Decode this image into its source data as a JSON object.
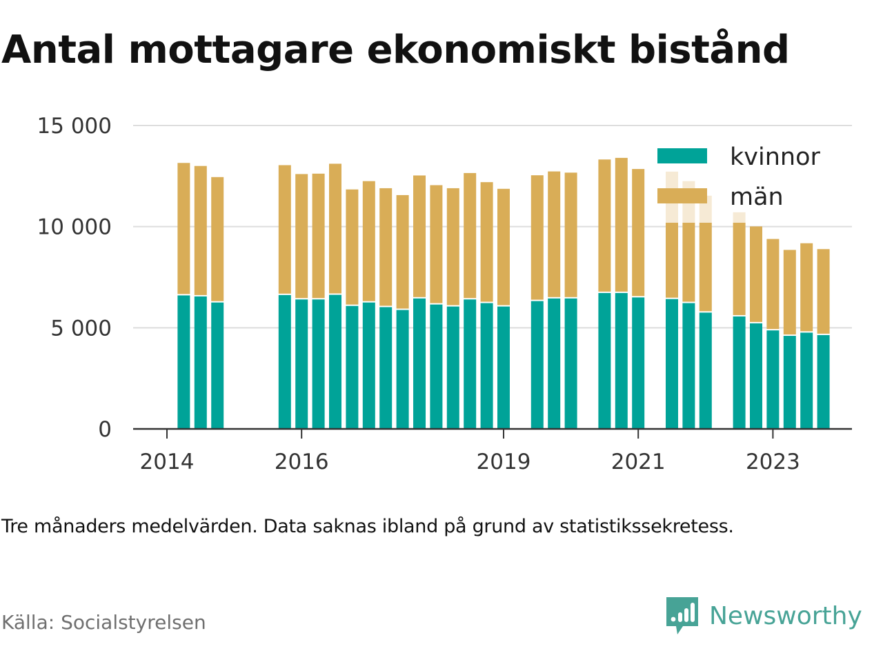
{
  "header": {
    "title": "Antal mottagare ekonomiskt bistånd"
  },
  "footer": {
    "note": "Tre månaders medelvärden. Data saknas ibland på grund av statistikssekretess.",
    "source": "Källa: Socialstyrelsen",
    "brand": "Newsworthy",
    "brand_icon": "newsworthy-logo-icon"
  },
  "chart_data": {
    "type": "bar",
    "stacked": true,
    "title": "Antal mottagare ekonomiskt bistånd",
    "xlabel": "",
    "ylabel": "",
    "ylim": [
      0,
      15000
    ],
    "yticks": [
      0,
      5000,
      10000,
      15000
    ],
    "ytick_labels": [
      "0",
      "5 000",
      "10 000",
      "15 000"
    ],
    "xticks": [
      2014,
      2016,
      2019,
      2021,
      2023
    ],
    "grid": true,
    "legend_position": "top-right",
    "colors": {
      "kvinnor": "#00a398",
      "män": "#d9ad57"
    },
    "series": [
      {
        "name": "kvinnor",
        "color": "#00a398"
      },
      {
        "name": "män",
        "color": "#d9ad57"
      }
    ],
    "points": [
      {
        "x": 2014.25,
        "kvinnor": 6600,
        "män": 6550
      },
      {
        "x": 2014.5,
        "kvinnor": 6550,
        "män": 6450
      },
      {
        "x": 2014.75,
        "kvinnor": 6250,
        "män": 6200
      },
      {
        "x": 2015.75,
        "kvinnor": 6620,
        "män": 6420
      },
      {
        "x": 2016.0,
        "kvinnor": 6400,
        "män": 6200
      },
      {
        "x": 2016.25,
        "kvinnor": 6400,
        "män": 6220
      },
      {
        "x": 2016.5,
        "kvinnor": 6630,
        "män": 6480
      },
      {
        "x": 2016.75,
        "kvinnor": 6080,
        "män": 5760
      },
      {
        "x": 2017.0,
        "kvinnor": 6250,
        "män": 6000
      },
      {
        "x": 2017.25,
        "kvinnor": 6020,
        "män": 5880
      },
      {
        "x": 2017.5,
        "kvinnor": 5880,
        "män": 5680
      },
      {
        "x": 2017.75,
        "kvinnor": 6450,
        "män": 6080
      },
      {
        "x": 2018.0,
        "kvinnor": 6150,
        "män": 5900
      },
      {
        "x": 2018.25,
        "kvinnor": 6050,
        "män": 5850
      },
      {
        "x": 2018.5,
        "kvinnor": 6400,
        "män": 6250
      },
      {
        "x": 2018.75,
        "kvinnor": 6220,
        "män": 5980
      },
      {
        "x": 2019.0,
        "kvinnor": 6050,
        "män": 5820
      },
      {
        "x": 2019.5,
        "kvinnor": 6320,
        "män": 6220
      },
      {
        "x": 2019.75,
        "kvinnor": 6450,
        "män": 6280
      },
      {
        "x": 2020.0,
        "kvinnor": 6450,
        "män": 6220
      },
      {
        "x": 2020.5,
        "kvinnor": 6720,
        "män": 6600
      },
      {
        "x": 2020.75,
        "kvinnor": 6720,
        "män": 6680
      },
      {
        "x": 2021.0,
        "kvinnor": 6500,
        "män": 6350
      },
      {
        "x": 2021.5,
        "kvinnor": 6420,
        "män": 6300
      },
      {
        "x": 2021.75,
        "kvinnor": 6220,
        "män": 6030
      },
      {
        "x": 2022.0,
        "kvinnor": 5750,
        "män": 5780
      },
      {
        "x": 2022.5,
        "kvinnor": 5560,
        "män": 5150
      },
      {
        "x": 2022.75,
        "kvinnor": 5220,
        "män": 4790
      },
      {
        "x": 2023.0,
        "kvinnor": 4870,
        "män": 4520
      },
      {
        "x": 2023.25,
        "kvinnor": 4600,
        "män": 4250
      },
      {
        "x": 2023.5,
        "kvinnor": 4760,
        "män": 4420
      },
      {
        "x": 2023.75,
        "kvinnor": 4640,
        "män": 4250
      }
    ]
  }
}
